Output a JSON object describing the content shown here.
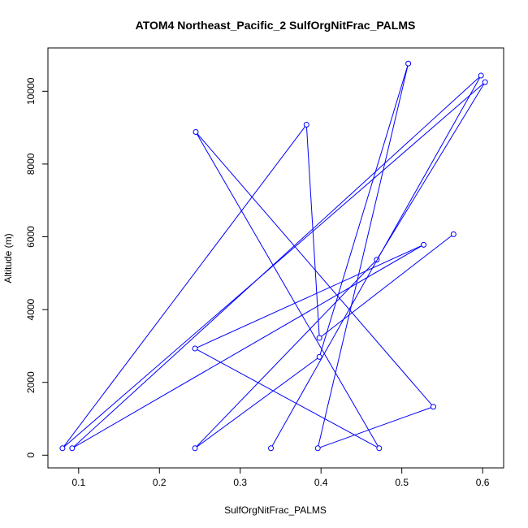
{
  "chart_data": {
    "type": "line",
    "title": "ATOM4 Northeast_Pacific_2 SulfOrgNitFrac_PALMS",
    "xlabel": "SulfOrgNitFrac_PALMS",
    "ylabel": "Altitude (m)",
    "xlim": [
      0.062,
      0.626
    ],
    "ylim": [
      -350,
      11190
    ],
    "xticks": [
      0.1,
      0.2,
      0.3,
      0.4,
      0.5,
      0.6
    ],
    "xtick_labels": [
      "0.1",
      "0.2",
      "0.3",
      "0.4",
      "0.5",
      "0.6"
    ],
    "yticks": [
      0,
      2000,
      4000,
      6000,
      8000,
      10000
    ],
    "ytick_labels": [
      "0",
      "2000",
      "4000",
      "6000",
      "8000",
      "10000"
    ],
    "grid": false,
    "series": [
      {
        "color": "#0000ff",
        "marker": "open-circle",
        "points": [
          {
            "x": 0.338,
            "y": 190
          },
          {
            "x": 0.598,
            "y": 10430
          },
          {
            "x": 0.092,
            "y": 190
          },
          {
            "x": 0.527,
            "y": 5780
          },
          {
            "x": 0.244,
            "y": 2930
          },
          {
            "x": 0.472,
            "y": 190
          },
          {
            "x": 0.245,
            "y": 8880
          },
          {
            "x": 0.539,
            "y": 1330
          },
          {
            "x": 0.396,
            "y": 190
          },
          {
            "x": 0.508,
            "y": 10760
          },
          {
            "x": 0.398,
            "y": 2700
          },
          {
            "x": 0.244,
            "y": 190
          },
          {
            "x": 0.469,
            "y": 5370
          },
          {
            "x": 0.603,
            "y": 10250
          },
          {
            "x": 0.08,
            "y": 190
          },
          {
            "x": 0.382,
            "y": 9080
          },
          {
            "x": 0.398,
            "y": 3220
          },
          {
            "x": 0.564,
            "y": 6070
          }
        ]
      }
    ]
  }
}
